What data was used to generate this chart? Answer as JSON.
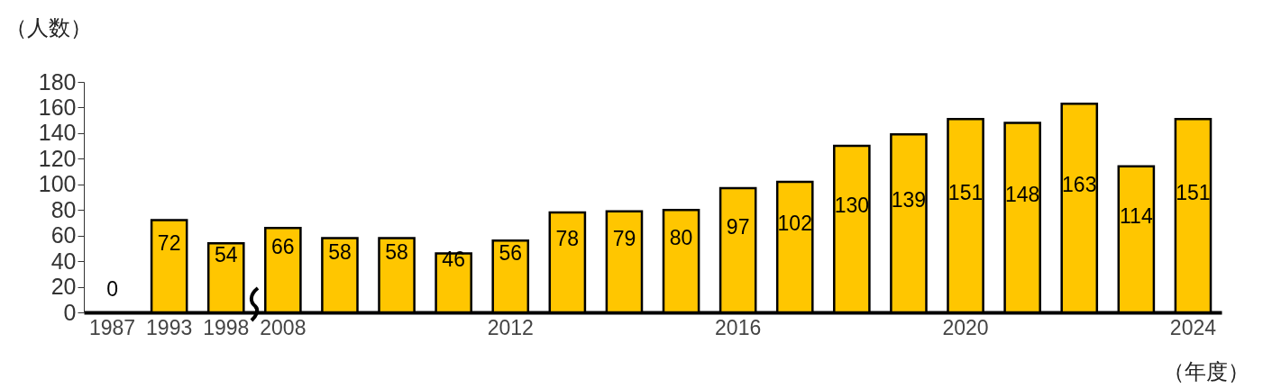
{
  "chart_data": {
    "type": "bar",
    "xlabel": "（年度）",
    "ylabel": "（人数）",
    "categories": [
      "1987",
      "1993",
      "1998",
      "2008",
      null,
      null,
      null,
      "2012",
      null,
      null,
      null,
      "2016",
      null,
      null,
      null,
      "2020",
      null,
      null,
      null,
      "2024"
    ],
    "values": [
      0,
      72,
      54,
      66,
      58,
      58,
      46,
      56,
      78,
      79,
      80,
      97,
      102,
      130,
      139,
      151,
      148,
      163,
      114,
      151
    ],
    "color": "#ffc600",
    "ylim": [
      0,
      180
    ],
    "yticks": [
      0,
      20,
      40,
      60,
      80,
      100,
      120,
      140,
      160,
      180
    ],
    "grid": false,
    "data_labels": true
  }
}
